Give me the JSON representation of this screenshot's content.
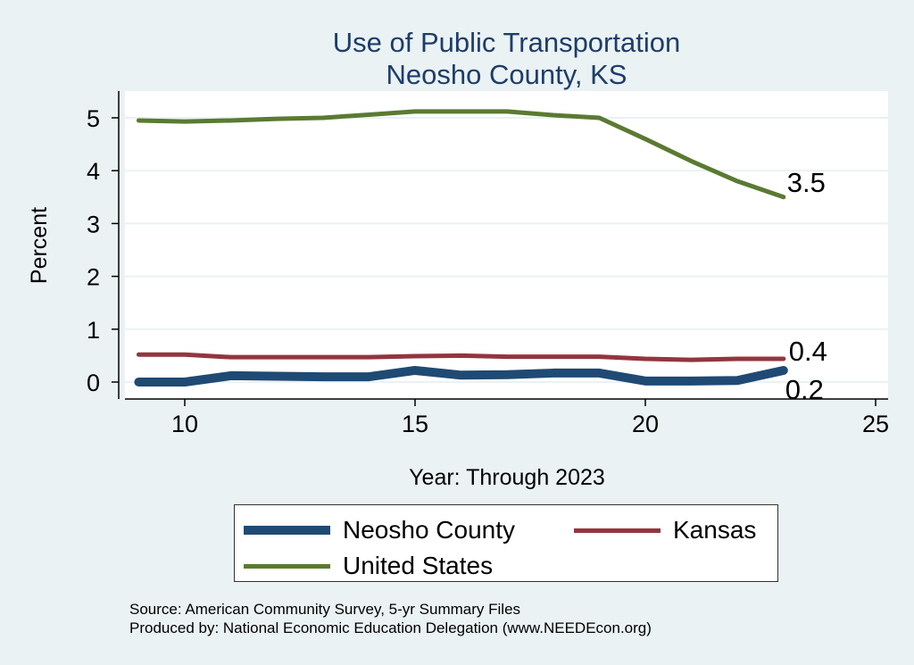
{
  "chart_data": {
    "type": "line",
    "title": "Use of Public Transportation",
    "subtitle": "Neosho County, KS",
    "xlabel": "Year: Through 2023",
    "ylabel": "Percent",
    "xlim": [
      9,
      25
    ],
    "ylim": [
      0,
      5
    ],
    "xticks": [
      10,
      15,
      20,
      25
    ],
    "yticks": [
      0,
      1,
      2,
      3,
      4,
      5
    ],
    "grid": true,
    "legend_position": "bottom",
    "x": [
      9,
      10,
      11,
      12,
      13,
      14,
      15,
      16,
      17,
      18,
      19,
      20,
      21,
      22,
      23
    ],
    "series": [
      {
        "name": "Neosho County",
        "color": "#1f4a73",
        "end_label": "0.2",
        "values": [
          0,
          0,
          0.12,
          0.11,
          0.1,
          0.1,
          0.22,
          0.13,
          0.14,
          0.17,
          0.17,
          0.02,
          0.02,
          0.03,
          0.22
        ]
      },
      {
        "name": "Kansas",
        "color": "#93353f",
        "end_label": "0.4",
        "values": [
          0.52,
          0.52,
          0.47,
          0.47,
          0.47,
          0.47,
          0.49,
          0.5,
          0.48,
          0.48,
          0.48,
          0.44,
          0.42,
          0.44,
          0.44
        ]
      },
      {
        "name": "United States",
        "color": "#5a7a32",
        "end_label": "3.5",
        "values": [
          4.95,
          4.93,
          4.95,
          4.98,
          5.0,
          5.06,
          5.12,
          5.12,
          5.12,
          5.05,
          5.0,
          4.6,
          4.18,
          3.8,
          3.5
        ]
      }
    ]
  },
  "source": "Source: American Community Survey, 5-yr Summary Files",
  "producer": "Produced by: National Economic Education Delegation (www.NEEDEcon.org)"
}
